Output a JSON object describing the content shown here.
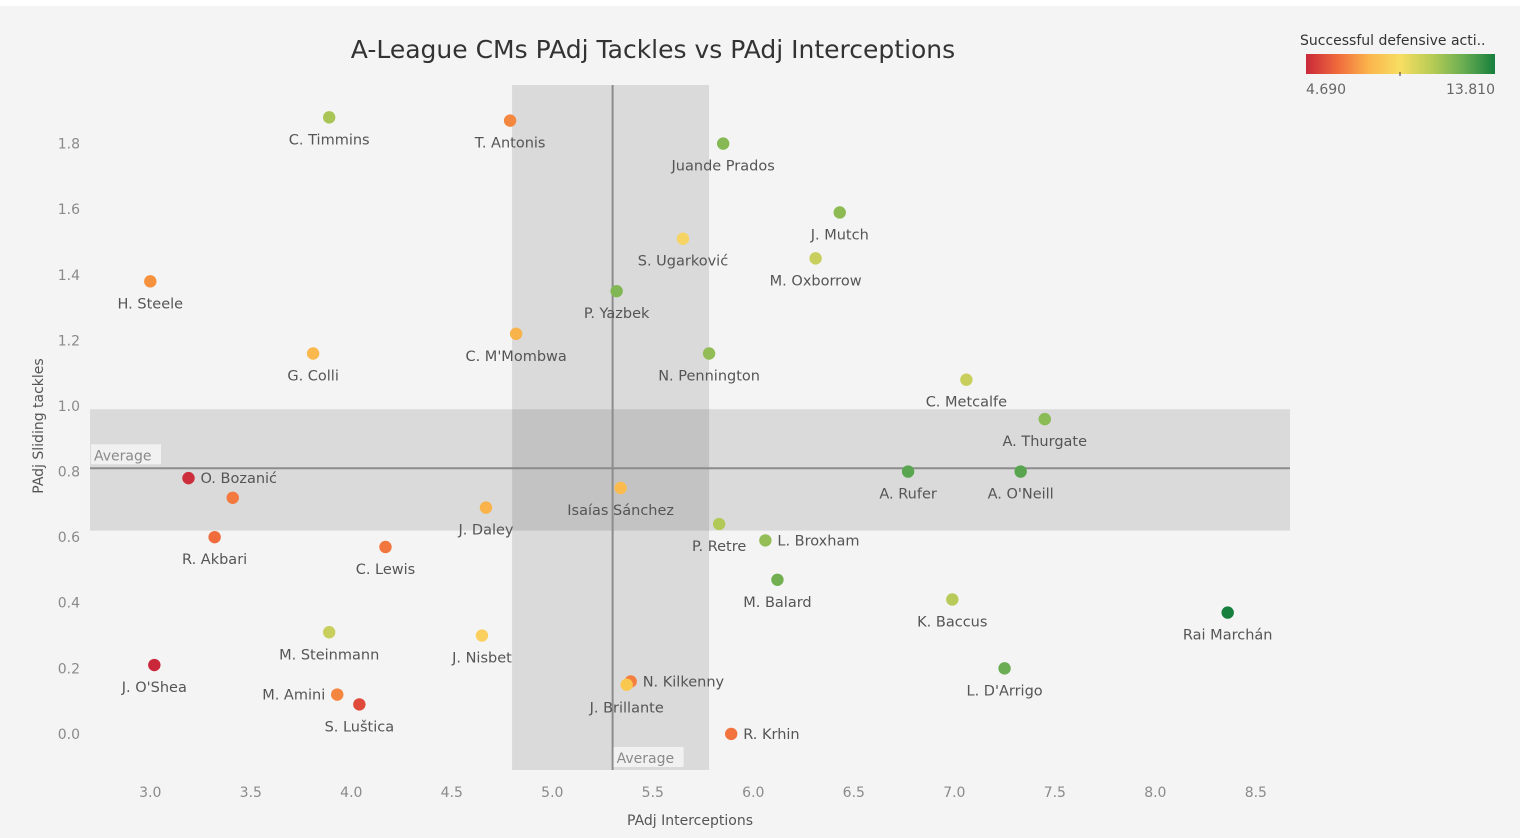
{
  "chart_data": {
    "type": "scatter",
    "title": "A-League CMs PAdj Tackles vs PAdj Interceptions",
    "xlabel": "PAdj Interceptions",
    "ylabel": "PAdj Sliding tackles",
    "xlim": [
      2.7,
      8.67
    ],
    "ylim": [
      -0.11,
      2.0
    ],
    "x_ticks": [
      "3.0",
      "3.5",
      "4.0",
      "4.5",
      "5.0",
      "5.5",
      "6.0",
      "6.5",
      "7.0",
      "7.5",
      "8.0",
      "8.5"
    ],
    "y_ticks": [
      "0.0",
      "0.2",
      "0.4",
      "0.6",
      "0.8",
      "1.0",
      "1.2",
      "1.4",
      "1.6",
      "1.8"
    ],
    "grid": false,
    "color_legend": {
      "title": "Successful defensive acti..",
      "min_label": "4.690",
      "max_label": "13.810",
      "min": 4.69,
      "max": 13.81,
      "placement": "top-right",
      "colors": [
        "#c9283a",
        "#f06a3c",
        "#fbb54c",
        "#f7de62",
        "#b7cc55",
        "#6aad52",
        "#167f3d"
      ]
    },
    "x_reference": {
      "label": "Average",
      "value": 5.3,
      "band": [
        4.8,
        5.78
      ]
    },
    "y_reference": {
      "label": "Average",
      "value": 0.81,
      "band": [
        0.62,
        0.99
      ]
    },
    "points": [
      {
        "name": "C. Timmins",
        "x": 3.89,
        "y": 1.88,
        "color": "#a9c556"
      },
      {
        "name": "T. Antonis",
        "x": 4.79,
        "y": 1.87,
        "color": "#f4873f"
      },
      {
        "name": "Juande Prados",
        "x": 5.85,
        "y": 1.8,
        "color": "#86b954"
      },
      {
        "name": "J. Mutch",
        "x": 6.43,
        "y": 1.59,
        "color": "#8eba54"
      },
      {
        "name": "S. Ugarković",
        "x": 5.65,
        "y": 1.51,
        "color": "#f5d463"
      },
      {
        "name": "M. Oxborrow",
        "x": 6.31,
        "y": 1.45,
        "color": "#c9cf5d"
      },
      {
        "name": "H. Steele",
        "x": 3.0,
        "y": 1.38,
        "color": "#f6913e"
      },
      {
        "name": "P. Yazbek",
        "x": 5.32,
        "y": 1.35,
        "color": "#80b653"
      },
      {
        "name": "C. M'Mombwa",
        "x": 4.82,
        "y": 1.22,
        "color": "#f9b34b"
      },
      {
        "name": "G. Colli",
        "x": 3.81,
        "y": 1.16,
        "color": "#fab84d"
      },
      {
        "name": "N. Pennington",
        "x": 5.78,
        "y": 1.16,
        "color": "#92bc55"
      },
      {
        "name": "C. Metcalfe",
        "x": 7.06,
        "y": 1.08,
        "color": "#c8cf5d"
      },
      {
        "name": "A. Thurgate",
        "x": 7.45,
        "y": 0.96,
        "color": "#8abb54"
      },
      {
        "name": "O. Bozanić",
        "x": 3.19,
        "y": 0.78,
        "color": "#cc2e3b"
      },
      {
        "name": "A. Rufer",
        "x": 6.77,
        "y": 0.8,
        "color": "#5aa54f"
      },
      {
        "name": "A. O'Neill",
        "x": 7.33,
        "y": 0.8,
        "color": "#58a44f"
      },
      {
        "name": "",
        "x": 3.41,
        "y": 0.72,
        "color": "#f4793e"
      },
      {
        "name": "Isaías Sánchez",
        "x": 5.34,
        "y": 0.75,
        "color": "#fbbb4f"
      },
      {
        "name": "J. Daley",
        "x": 4.67,
        "y": 0.69,
        "color": "#fab34a"
      },
      {
        "name": "R. Akbari",
        "x": 3.32,
        "y": 0.6,
        "color": "#f06c3c"
      },
      {
        "name": "P. Retre",
        "x": 5.83,
        "y": 0.64,
        "color": "#b1c957"
      },
      {
        "name": "L. Broxham",
        "x": 6.06,
        "y": 0.59,
        "color": "#94be55"
      },
      {
        "name": "C. Lewis",
        "x": 4.17,
        "y": 0.57,
        "color": "#f2763e"
      },
      {
        "name": "M. Balard",
        "x": 6.12,
        "y": 0.47,
        "color": "#72af51"
      },
      {
        "name": "K. Baccus",
        "x": 6.99,
        "y": 0.41,
        "color": "#b8cb5a"
      },
      {
        "name": "Rai Marchán",
        "x": 8.36,
        "y": 0.37,
        "color": "#167f3d"
      },
      {
        "name": "M. Steinmann",
        "x": 3.89,
        "y": 0.31,
        "color": "#c8cf5d"
      },
      {
        "name": "J. Nisbet",
        "x": 4.65,
        "y": 0.3,
        "color": "#fbd05e"
      },
      {
        "name": "J. O'Shea",
        "x": 3.02,
        "y": 0.21,
        "color": "#c9283a"
      },
      {
        "name": "L. D'Arrigo",
        "x": 7.25,
        "y": 0.2,
        "color": "#6aad52"
      },
      {
        "name": "N. Kilkenny",
        "x": 5.39,
        "y": 0.16,
        "color": "#f57f3e"
      },
      {
        "name": "J. Brillante",
        "x": 5.37,
        "y": 0.15,
        "color": "#fbc84f"
      },
      {
        "name": "M. Amini",
        "x": 3.93,
        "y": 0.12,
        "color": "#f4863f"
      },
      {
        "name": "S. Luštica",
        "x": 4.04,
        "y": 0.09,
        "color": "#e04a3a"
      },
      {
        "name": "R. Krhin",
        "x": 5.89,
        "y": 0.0,
        "color": "#f2733d"
      }
    ]
  }
}
